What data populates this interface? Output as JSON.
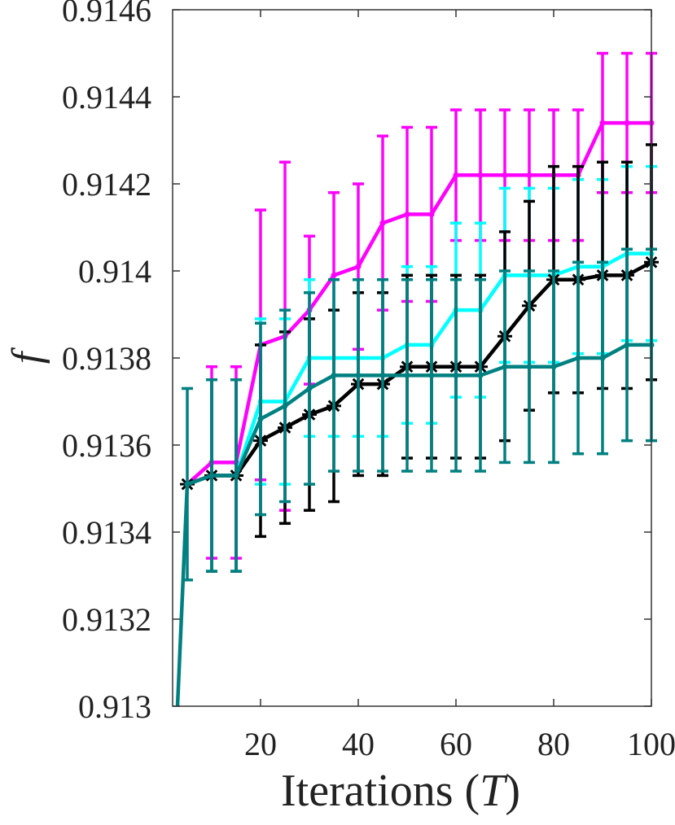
{
  "chart_data": {
    "type": "line",
    "xlabel": "Iterations (",
    "xlabel_var": "T",
    "xlabel_close": ")",
    "ylabel": "f",
    "xlim": [
      2,
      100
    ],
    "ylim": [
      0.913,
      0.9146
    ],
    "xticks": [
      20,
      40,
      60,
      80,
      100
    ],
    "xtick_labels": [
      "20",
      "40",
      "60",
      "80",
      "100"
    ],
    "yticks": [
      0.913,
      0.9132,
      0.9134,
      0.9136,
      0.9138,
      0.914,
      0.9142,
      0.9144,
      0.9146
    ],
    "ytick_labels": [
      "0.913",
      "0.9132",
      "0.9134",
      "0.9136",
      "0.9138",
      "0.914",
      "0.9142",
      "0.9144",
      "0.9146"
    ],
    "grid": false,
    "x": [
      5,
      10,
      15,
      20,
      25,
      30,
      35,
      40,
      45,
      50,
      55,
      60,
      65,
      70,
      75,
      80,
      85,
      90,
      95,
      100
    ],
    "series": [
      {
        "color": "#ff00ff",
        "marker": "dot",
        "values": [
          0.91351,
          0.91356,
          0.91356,
          0.91383,
          0.91385,
          0.91391,
          0.91399,
          0.91401,
          0.91411,
          0.91413,
          0.91413,
          0.91422,
          0.91422,
          0.91422,
          0.91422,
          0.91422,
          0.91422,
          0.91434,
          0.91434,
          0.91434
        ],
        "err": [
          0.0,
          0.00022,
          0.00022,
          0.00031,
          0.0004,
          0.00017,
          0.00019,
          0.00019,
          0.0002,
          0.0002,
          0.0002,
          0.00015,
          0.00015,
          0.00015,
          0.00015,
          0.00015,
          0.00015,
          0.00016,
          0.00016,
          0.00016
        ]
      },
      {
        "color": "#00ffff",
        "marker": "dot",
        "values": [
          0.91351,
          0.91353,
          0.91353,
          0.9137,
          0.9137,
          0.9138,
          0.9138,
          0.9138,
          0.9138,
          0.91383,
          0.91383,
          0.91391,
          0.91391,
          0.91399,
          0.91399,
          0.91399,
          0.91401,
          0.91401,
          0.91404,
          0.91404
        ],
        "err": [
          0.0,
          0.00022,
          0.00022,
          0.00019,
          0.00019,
          0.00018,
          0.00018,
          0.00018,
          0.00018,
          0.00018,
          0.00018,
          0.0002,
          0.0002,
          0.0002,
          0.0002,
          0.0002,
          0.0002,
          0.0002,
          0.0002,
          0.0002
        ]
      },
      {
        "color": "#000000",
        "marker": "star",
        "values": [
          0.91351,
          0.91353,
          0.91353,
          0.91361,
          0.91364,
          0.91367,
          0.91369,
          0.91374,
          0.91374,
          0.91378,
          0.91378,
          0.91378,
          0.91378,
          0.91385,
          0.91392,
          0.91398,
          0.91398,
          0.91399,
          0.91399,
          0.91402
        ],
        "err": [
          0.0,
          0.00022,
          0.00022,
          0.00022,
          0.00022,
          0.00022,
          0.00022,
          0.00021,
          0.00021,
          0.00021,
          0.00021,
          0.00021,
          0.00021,
          0.00024,
          0.00024,
          0.00026,
          0.00026,
          0.00026,
          0.00026,
          0.00027
        ]
      },
      {
        "color": "#008080",
        "marker": "dot",
        "values": [
          0.91351,
          0.91353,
          0.91353,
          0.91366,
          0.91369,
          0.91373,
          0.91376,
          0.91376,
          0.91376,
          0.91376,
          0.91376,
          0.91376,
          0.91376,
          0.91378,
          0.91378,
          0.91378,
          0.9138,
          0.9138,
          0.91383,
          0.91383
        ],
        "err": [
          0.00022,
          0.00022,
          0.00022,
          0.00022,
          0.00022,
          0.00022,
          0.00022,
          0.00022,
          0.00022,
          0.00022,
          0.00022,
          0.00022,
          0.00022,
          0.00022,
          0.00022,
          0.00022,
          0.00022,
          0.00022,
          0.00022,
          0.00022
        ],
        "extra_start": {
          "x": 3,
          "y": 0.913
        }
      }
    ]
  }
}
